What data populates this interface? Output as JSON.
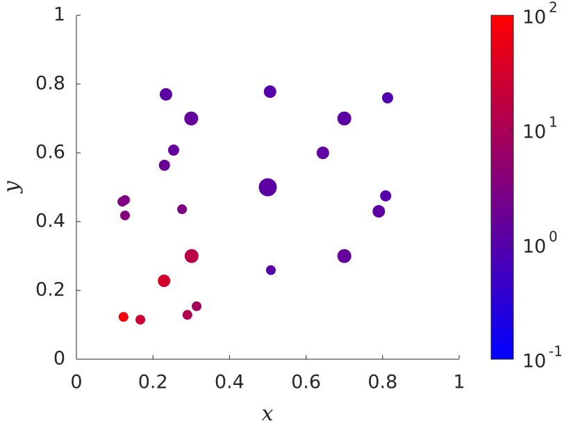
{
  "chart_data": {
    "type": "scatter",
    "x_label": "x",
    "y_label": "y",
    "x": [
      0.234,
      0.506,
      0.813,
      0.3,
      0.7,
      0.254,
      0.644,
      0.23,
      0.5,
      0.12,
      0.127,
      0.127,
      0.276,
      0.808,
      0.79,
      0.301,
      0.7,
      0.508,
      0.229,
      0.314,
      0.29,
      0.123,
      0.167
    ],
    "y": [
      0.77,
      0.778,
      0.76,
      0.7,
      0.7,
      0.608,
      0.6,
      0.564,
      0.5,
      0.458,
      0.463,
      0.418,
      0.436,
      0.475,
      0.43,
      0.3,
      0.3,
      0.259,
      0.228,
      0.154,
      0.129,
      0.123,
      0.115
    ],
    "sizes": [
      81,
      81,
      64,
      100,
      100,
      64,
      81,
      64,
      169,
      49,
      49,
      49,
      49,
      64,
      81,
      100,
      100,
      49,
      81,
      49,
      49,
      49,
      49
    ],
    "color_values": [
      1.2,
      1.0,
      0.9,
      1.5,
      1.2,
      1.5,
      1.3,
      1.8,
      1.2,
      3,
      3,
      3.5,
      3,
      1.0,
      1.2,
      15,
      1.5,
      1.0,
      30,
      8,
      12,
      80,
      25
    ],
    "colormap": [
      "#0000ff",
      "#ff0000"
    ],
    "color_scale": "log",
    "clim": [
      0.1,
      100
    ],
    "cticks": [
      {
        "value": 0.1,
        "label": "10",
        "exponent": "-1"
      },
      {
        "value": 1,
        "label": "10",
        "exponent": "0"
      },
      {
        "value": 10,
        "label": "10",
        "exponent": "1"
      },
      {
        "value": 100,
        "label": "10",
        "exponent": "2"
      }
    ],
    "xlim": [
      0,
      1
    ],
    "ylim": [
      0,
      1
    ],
    "xticks": [
      0,
      0.2,
      0.4,
      0.6,
      0.8,
      1
    ],
    "yticks": [
      0,
      0.2,
      0.4,
      0.6,
      0.8,
      1
    ],
    "grid": false
  }
}
